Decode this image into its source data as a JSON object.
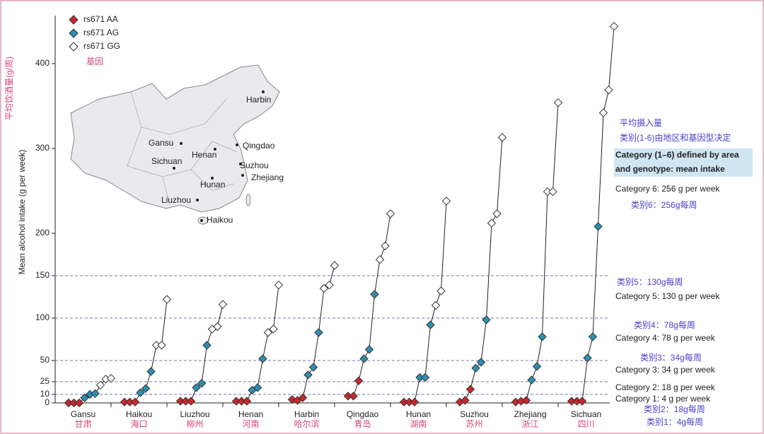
{
  "chart_data": {
    "type": "line",
    "y_label": "Mean alcohol intake (g per week)",
    "y_label_zh": "平均饮酒量(g/周)",
    "legend_note": "基因",
    "categories": [
      "Gansu",
      "Haikou",
      "Liuzhou",
      "Henan",
      "Harbin",
      "Qingdao",
      "Hunan",
      "Suzhou",
      "Zhejiang",
      "Sichuan"
    ],
    "categories_zh": [
      "甘肃",
      "海口",
      "柳州",
      "河南",
      "哈尔滨",
      "青岛",
      "湖南",
      "苏州",
      "浙江",
      "四川"
    ],
    "series": [
      {
        "name": "rs671 AA",
        "color": "#c8282e",
        "values": [
          [
            0,
            0,
            0
          ],
          [
            1,
            1,
            1
          ],
          [
            2,
            2,
            2
          ],
          [
            2,
            2,
            2
          ],
          [
            4,
            3,
            6
          ],
          [
            8,
            8,
            26
          ],
          [
            1,
            1,
            1
          ],
          [
            1,
            3,
            16
          ],
          [
            1,
            2,
            3
          ],
          [
            2,
            2,
            2
          ]
        ]
      },
      {
        "name": "rs671 AG",
        "color": "#2b8fb3",
        "values": [
          [
            6,
            10,
            11
          ],
          [
            12,
            17,
            37
          ],
          [
            18,
            23,
            68
          ],
          [
            15,
            18,
            52
          ],
          [
            33,
            42,
            83
          ],
          [
            52,
            63,
            128
          ],
          [
            30,
            30,
            92
          ],
          [
            41,
            48,
            98
          ],
          [
            27,
            43,
            78
          ],
          [
            53,
            78,
            208
          ]
        ]
      },
      {
        "name": "rs671 GG",
        "color": "#ffffff",
        "values": [
          [
            21,
            28,
            29
          ],
          [
            68,
            68,
            122
          ],
          [
            87,
            90,
            116
          ],
          [
            83,
            87,
            139
          ],
          [
            135,
            139,
            162
          ],
          [
            169,
            185,
            223
          ],
          [
            115,
            132,
            238
          ],
          [
            212,
            223,
            313
          ],
          [
            249,
            249,
            354
          ],
          [
            342,
            369,
            444
          ]
        ]
      }
    ],
    "ylim": [
      0,
      450
    ],
    "yticks": [
      0,
      10,
      25,
      50,
      100,
      150,
      200,
      300,
      400
    ],
    "thresholds": [
      10,
      25,
      50,
      100,
      150
    ],
    "annotations": [
      "平均摄入量",
      "类别(1-6)由地区和基因型决定",
      "Category (1–6) defined by area",
      "and genotype: mean intake",
      "Category 6: 256 g per week",
      "类别6：256g每周",
      "类别5：130g每周",
      "Category 5: 130 g per week",
      "类别4：78g每周",
      "Category 4: 78 g per week",
      "类别3：34g每周",
      "Category 3: 34 g per week",
      "Category 2: 18 g per week",
      "Category 1: 4 g per week",
      "类别2：18g每周",
      "类别1：4g每周"
    ],
    "map_cities": [
      "Harbin",
      "Gansu",
      "Qingdao",
      "Henan",
      "Sichuan",
      "Suzhou",
      "Zhejiang",
      "Hunan",
      "Liuzhou",
      "Haikou"
    ]
  }
}
